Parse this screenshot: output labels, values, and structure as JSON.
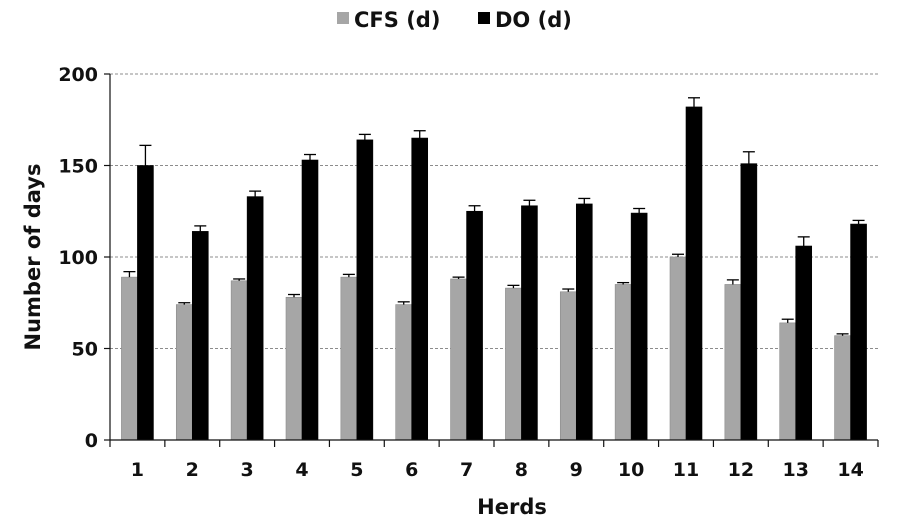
{
  "chart_data": {
    "type": "bar",
    "xlabel": "Herds",
    "ylabel": "Number of days",
    "ylim": [
      0,
      200
    ],
    "yticks": [
      0,
      50,
      100,
      150,
      200
    ],
    "grid": "horizontal dashed",
    "legend_position": "top-center",
    "categories": [
      "1",
      "2",
      "3",
      "4",
      "5",
      "6",
      "7",
      "8",
      "9",
      "10",
      "11",
      "12",
      "13",
      "14"
    ],
    "series": [
      {
        "name": "CFS (d)",
        "color": "#a6a6a6",
        "values": [
          89,
          74,
          87,
          78,
          89,
          74,
          88,
          83,
          81,
          85,
          100,
          85,
          64,
          57
        ],
        "errors": [
          3,
          1,
          1,
          1.5,
          1.5,
          1.5,
          1,
          1.5,
          1.5,
          1,
          1.5,
          2.5,
          2,
          1
        ]
      },
      {
        "name": "DO (d)",
        "color": "#000000",
        "values": [
          150,
          114,
          133,
          153,
          164,
          165,
          125,
          128,
          129,
          124,
          182,
          151,
          106,
          118
        ],
        "errors": [
          11,
          3,
          3,
          3,
          3,
          4,
          3,
          3,
          3,
          2.5,
          5,
          6.5,
          5,
          2
        ]
      }
    ]
  }
}
